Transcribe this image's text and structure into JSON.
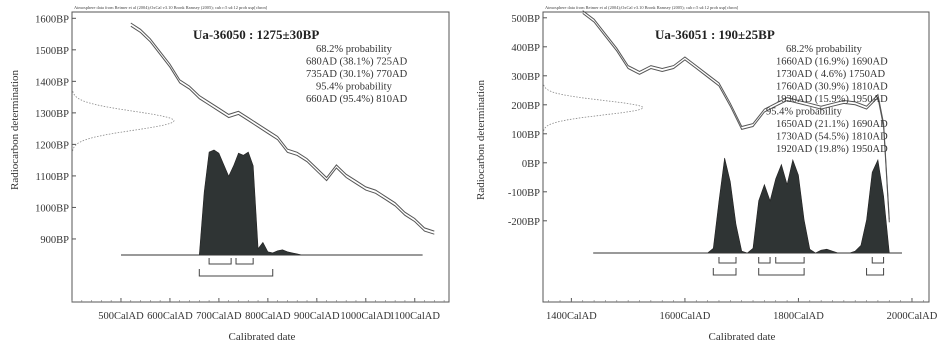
{
  "chart_data": [
    {
      "type": "line",
      "atmosphere_note": "Atmosphere data from Reimer et al (2004);OxCal v3.10 Bronk Ramsey (2005); cub r:5 sd:12 prob usp[chron]",
      "title": "Ua-36050 : 1275±30BP",
      "xlabel": "Calibrated date",
      "ylabel": "Radiocarbon determination",
      "xlim": [
        400,
        1170
      ],
      "ylim": [
        700,
        1620
      ],
      "x_ticks": [
        {
          "value": 500,
          "label": "500CalAD"
        },
        {
          "value": 600,
          "label": "600CalAD"
        },
        {
          "value": 700,
          "label": "700CalAD"
        },
        {
          "value": 800,
          "label": "800CalAD"
        },
        {
          "value": 900,
          "label": "900CalAD"
        },
        {
          "value": 1000,
          "label": "1000CalAD"
        },
        {
          "value": 1100,
          "label": "1100CalAD"
        }
      ],
      "y_ticks": [
        {
          "value": 1600,
          "label": "1600BP"
        },
        {
          "value": 1500,
          "label": "1500BP"
        },
        {
          "value": 1400,
          "label": "1400BP"
        },
        {
          "value": 1300,
          "label": "1300BP"
        },
        {
          "value": 1200,
          "label": "1200BP"
        },
        {
          "value": 1100,
          "label": "1100BP"
        },
        {
          "value": 1000,
          "label": "1000BP"
        },
        {
          "value": 900,
          "label": "900BP"
        }
      ],
      "prob_lines": [
        "68.2% probability",
        "680AD (38.1%) 725AD",
        "735AD (30.1%) 770AD",
        "95.4% probability",
        "660AD (95.4%) 810AD"
      ],
      "calibration_curve": {
        "x": [
          520,
          540,
          560,
          580,
          600,
          620,
          640,
          660,
          680,
          700,
          720,
          740,
          760,
          780,
          800,
          820,
          840,
          860,
          880,
          900,
          920,
          940,
          960,
          980,
          1000,
          1020,
          1040,
          1060,
          1080,
          1100,
          1120,
          1140
        ],
        "y": [
          1580,
          1560,
          1530,
          1490,
          1450,
          1400,
          1380,
          1350,
          1330,
          1310,
          1290,
          1300,
          1280,
          1260,
          1240,
          1220,
          1180,
          1170,
          1150,
          1120,
          1090,
          1130,
          1100,
          1080,
          1060,
          1050,
          1030,
          1010,
          980,
          960,
          930,
          920
        ]
      },
      "measured": {
        "mean": 1275,
        "sd": 30
      },
      "posterior": {
        "x": [
          660,
          670,
          680,
          690,
          700,
          710,
          720,
          730,
          740,
          750,
          760,
          770,
          780,
          790,
          800,
          810,
          820,
          830,
          840,
          850,
          860,
          870
        ],
        "y": [
          0,
          0.6,
          0.98,
          1.0,
          0.97,
          0.86,
          0.75,
          0.85,
          0.97,
          0.95,
          0.98,
          0.85,
          0.06,
          0.12,
          0.03,
          0.02,
          0.04,
          0.05,
          0.03,
          0.02,
          0.01,
          0
        ]
      },
      "range_68": [
        [
          680,
          725
        ],
        [
          735,
          770
        ]
      ],
      "range_95": [
        [
          660,
          810
        ]
      ]
    },
    {
      "type": "line",
      "atmosphere_note": "Atmosphere data from Reimer et al (2004);OxCal v3.10 Bronk Ramsey (2005); cub r:5 sd:12 prob usp[chron]",
      "title": "Ua-36051 : 190±25BP",
      "xlabel": "Calibrated date",
      "ylabel": "Radiocarbon determination",
      "xlim": [
        1350,
        2030
      ],
      "ylim": [
        -480,
        520
      ],
      "x_ticks": [
        {
          "value": 1400,
          "label": "1400CalAD"
        },
        {
          "value": 1600,
          "label": "1600CalAD"
        },
        {
          "value": 1800,
          "label": "1800CalAD"
        },
        {
          "value": 2000,
          "label": "2000CalAD"
        }
      ],
      "y_ticks": [
        {
          "value": 500,
          "label": "500BP"
        },
        {
          "value": 400,
          "label": "400BP"
        },
        {
          "value": 300,
          "label": "300BP"
        },
        {
          "value": 200,
          "label": "200BP"
        },
        {
          "value": 100,
          "label": "100BP"
        },
        {
          "value": 0,
          "label": "0BP"
        },
        {
          "value": -100,
          "label": "-100BP"
        },
        {
          "value": -200,
          "label": "-200BP"
        }
      ],
      "prob_lines": [
        "68.2% probability",
        "1660AD (16.9%) 1690AD",
        "1730AD ( 4.6%) 1750AD",
        "1760AD (30.9%) 1810AD",
        "1930AD (15.9%) 1950AD",
        "95.4% probability",
        "1650AD (21.1%) 1690AD",
        "1730AD (54.5%) 1810AD",
        "1920AD (19.8%) 1950AD"
      ],
      "calibration_curve": {
        "x": [
          1420,
          1440,
          1460,
          1480,
          1500,
          1520,
          1540,
          1560,
          1580,
          1600,
          1620,
          1640,
          1660,
          1680,
          1700,
          1720,
          1740,
          1760,
          1780,
          1800,
          1820,
          1840,
          1860,
          1880,
          1900,
          1920,
          1940,
          1950,
          1960
        ],
        "y": [
          520,
          490,
          440,
          390,
          330,
          310,
          330,
          320,
          330,
          360,
          330,
          300,
          270,
          200,
          120,
          130,
          180,
          200,
          220,
          210,
          200,
          190,
          200,
          210,
          205,
          190,
          230,
          130,
          -200
        ]
      },
      "measured": {
        "mean": 190,
        "sd": 25
      },
      "posterior": {
        "x": [
          1640,
          1650,
          1660,
          1670,
          1680,
          1690,
          1700,
          1710,
          1720,
          1730,
          1740,
          1750,
          1760,
          1770,
          1780,
          1790,
          1800,
          1810,
          1820,
          1830,
          1840,
          1850,
          1860,
          1870,
          1880,
          1890,
          1900,
          1910,
          1920,
          1930,
          1940,
          1950,
          1960
        ],
        "y": [
          0,
          0.05,
          0.55,
          1.0,
          0.75,
          0.3,
          0.02,
          0,
          0.05,
          0.55,
          0.72,
          0.55,
          0.78,
          0.93,
          0.72,
          0.98,
          0.82,
          0.35,
          0.04,
          0,
          0.03,
          0.04,
          0.02,
          0,
          0,
          0,
          0.02,
          0.08,
          0.35,
          0.85,
          0.98,
          0.6,
          0
        ]
      },
      "range_68": [
        [
          1660,
          1690
        ],
        [
          1730,
          1750
        ],
        [
          1760,
          1810
        ],
        [
          1930,
          1950
        ]
      ],
      "range_95": [
        [
          1650,
          1690
        ],
        [
          1730,
          1810
        ],
        [
          1920,
          1950
        ]
      ]
    }
  ]
}
